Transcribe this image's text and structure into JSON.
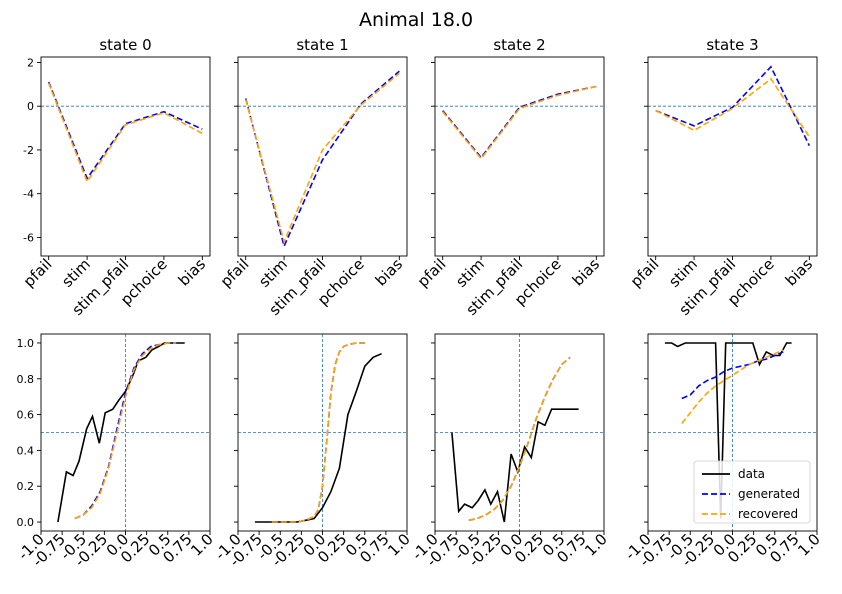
{
  "figure": {
    "title": "Animal 18.0"
  },
  "colors": {
    "generated": "#0000ff",
    "recovered": "#ffa500",
    "data": "#000000",
    "refline": "#1f77b4"
  },
  "chart_data": [
    {
      "type": "line",
      "panel": "weights",
      "title": "state 0",
      "categories": [
        "pfail",
        "stim",
        "stim_pfail",
        "pchoice",
        "bias"
      ],
      "ylim": [
        -6.85,
        2.25
      ],
      "yticks": [
        "-6",
        "-4",
        "-2",
        "0",
        "2"
      ],
      "show_yticklabels": true,
      "hline": 0,
      "series": [
        {
          "key": "generated",
          "values": [
            1.1,
            -3.3,
            -0.8,
            -0.25,
            -1.05
          ]
        },
        {
          "key": "recovered",
          "values": [
            1.05,
            -3.45,
            -0.85,
            -0.3,
            -1.25
          ]
        }
      ]
    },
    {
      "type": "line",
      "panel": "weights",
      "title": "state 1",
      "categories": [
        "pfail",
        "stim",
        "stim_pfail",
        "pchoice",
        "bias"
      ],
      "ylim": [
        -6.85,
        2.25
      ],
      "yticks": [
        "-6",
        "-4",
        "-2",
        "0",
        "2"
      ],
      "show_yticklabels": false,
      "hline": 0,
      "series": [
        {
          "key": "generated",
          "values": [
            0.35,
            -6.4,
            -2.45,
            0.1,
            1.6
          ]
        },
        {
          "key": "recovered",
          "values": [
            0.3,
            -6.2,
            -2.0,
            0.05,
            1.5
          ]
        }
      ]
    },
    {
      "type": "line",
      "panel": "weights",
      "title": "state 2",
      "categories": [
        "pfail",
        "stim",
        "stim_pfail",
        "pchoice",
        "bias"
      ],
      "ylim": [
        -6.85,
        2.25
      ],
      "yticks": [
        "-6",
        "-4",
        "-2",
        "0",
        "2"
      ],
      "show_yticklabels": false,
      "hline": 0,
      "series": [
        {
          "key": "generated",
          "values": [
            -0.2,
            -2.35,
            -0.05,
            0.55,
            0.9
          ]
        },
        {
          "key": "recovered",
          "values": [
            -0.25,
            -2.4,
            -0.1,
            0.5,
            0.9
          ]
        }
      ]
    },
    {
      "type": "line",
      "panel": "weights",
      "title": "state 3",
      "categories": [
        "pfail",
        "stim",
        "stim_pfail",
        "pchoice",
        "bias"
      ],
      "ylim": [
        -6.85,
        2.25
      ],
      "yticks": [
        "-6",
        "-4",
        "-2",
        "0",
        "2"
      ],
      "show_yticklabels": false,
      "hline": 0,
      "series": [
        {
          "key": "generated",
          "values": [
            -0.2,
            -0.9,
            -0.05,
            1.8,
            -1.8
          ]
        },
        {
          "key": "recovered",
          "values": [
            -0.2,
            -1.1,
            -0.1,
            1.25,
            -1.4
          ]
        }
      ]
    },
    {
      "type": "line",
      "panel": "psychometric",
      "xlim": [
        -1.0,
        1.0
      ],
      "ylim": [
        -0.05,
        1.05
      ],
      "xticks": [
        "-1.0",
        "-0.75",
        "-0.5",
        "-0.25",
        "0.0",
        "0.25",
        "0.5",
        "0.75",
        "1.0"
      ],
      "yticks": [
        "0.0",
        "0.2",
        "0.4",
        "0.6",
        "0.8",
        "1.0"
      ],
      "show_yticklabels": true,
      "hline": 0.5,
      "vline": 0,
      "series": [
        {
          "name": "data",
          "key": "data",
          "x": [
            -0.8,
            -0.7,
            -0.62,
            -0.55,
            -0.46,
            -0.39,
            -0.31,
            -0.24,
            -0.15,
            -0.08,
            0.0,
            0.08,
            0.15,
            0.24,
            0.31,
            0.39,
            0.46,
            0.55,
            0.62,
            0.7
          ],
          "y": [
            0.0,
            0.28,
            0.26,
            0.34,
            0.52,
            0.59,
            0.44,
            0.61,
            0.63,
            0.68,
            0.73,
            0.81,
            0.9,
            0.92,
            0.96,
            0.98,
            1.0,
            1.0,
            1.0,
            1.0
          ]
        },
        {
          "name": "generated",
          "key": "generated",
          "x": [
            -0.6,
            -0.5,
            -0.4,
            -0.3,
            -0.2,
            -0.1,
            0.0,
            0.1,
            0.2,
            0.3,
            0.4,
            0.5,
            0.6
          ],
          "y": [
            0.02,
            0.04,
            0.09,
            0.17,
            0.31,
            0.52,
            0.72,
            0.86,
            0.94,
            0.98,
            0.99,
            1.0,
            1.0
          ]
        },
        {
          "name": "recovered",
          "key": "recovered",
          "x": [
            -0.6,
            -0.5,
            -0.4,
            -0.3,
            -0.2,
            -0.1,
            0.0,
            0.1,
            0.2,
            0.3,
            0.4,
            0.5,
            0.6
          ],
          "y": [
            0.02,
            0.04,
            0.08,
            0.16,
            0.3,
            0.5,
            0.7,
            0.85,
            0.93,
            0.97,
            0.99,
            1.0,
            1.0
          ]
        }
      ]
    },
    {
      "type": "line",
      "panel": "psychometric",
      "xlim": [
        -1.0,
        1.0
      ],
      "ylim": [
        -0.05,
        1.05
      ],
      "xticks": [
        "-1.0",
        "-0.75",
        "-0.5",
        "-0.25",
        "0.0",
        "0.25",
        "0.5",
        "0.75",
        "1.0"
      ],
      "yticks": [
        "0.0",
        "0.2",
        "0.4",
        "0.6",
        "0.8",
        "1.0"
      ],
      "show_yticklabels": false,
      "hline": 0.5,
      "vline": 0,
      "series": [
        {
          "name": "data",
          "key": "data",
          "x": [
            -0.8,
            -0.7,
            -0.6,
            -0.5,
            -0.4,
            -0.3,
            -0.2,
            -0.1,
            0.0,
            0.1,
            0.2,
            0.3,
            0.4,
            0.5,
            0.6,
            0.7
          ],
          "y": [
            0.0,
            0.0,
            0.0,
            0.0,
            0.0,
            0.0,
            0.01,
            0.02,
            0.08,
            0.17,
            0.3,
            0.6,
            0.73,
            0.87,
            0.92,
            0.94
          ]
        },
        {
          "name": "generated",
          "key": "generated",
          "x": [
            -0.6,
            -0.5,
            -0.4,
            -0.3,
            -0.2,
            -0.1,
            -0.05,
            0.0,
            0.05,
            0.1,
            0.15,
            0.2,
            0.25,
            0.3,
            0.4,
            0.5
          ],
          "y": [
            0.0,
            0.0,
            0.0,
            0.0,
            0.01,
            0.03,
            0.07,
            0.2,
            0.45,
            0.72,
            0.88,
            0.95,
            0.98,
            0.99,
            1.0,
            1.0
          ]
        },
        {
          "name": "recovered",
          "key": "recovered",
          "x": [
            -0.6,
            -0.5,
            -0.4,
            -0.3,
            -0.2,
            -0.1,
            -0.05,
            0.0,
            0.05,
            0.1,
            0.15,
            0.2,
            0.25,
            0.3,
            0.4,
            0.5
          ],
          "y": [
            0.0,
            0.0,
            0.0,
            0.0,
            0.01,
            0.03,
            0.07,
            0.2,
            0.45,
            0.72,
            0.88,
            0.95,
            0.98,
            0.99,
            1.0,
            1.0
          ]
        }
      ]
    },
    {
      "type": "line",
      "panel": "psychometric",
      "xlim": [
        -1.0,
        1.0
      ],
      "ylim": [
        -0.05,
        1.05
      ],
      "xticks": [
        "-1.0",
        "-0.75",
        "-0.5",
        "-0.25",
        "0.0",
        "0.25",
        "0.5",
        "0.75",
        "1.0"
      ],
      "yticks": [
        "0.0",
        "0.2",
        "0.4",
        "0.6",
        "0.8",
        "1.0"
      ],
      "show_yticklabels": false,
      "hline": 0.5,
      "vline": 0,
      "series": [
        {
          "name": "data",
          "key": "data",
          "x": [
            -0.8,
            -0.72,
            -0.65,
            -0.56,
            -0.49,
            -0.41,
            -0.34,
            -0.26,
            -0.18,
            -0.1,
            -0.02,
            0.06,
            0.14,
            0.22,
            0.3,
            0.38,
            0.45,
            0.54,
            0.62,
            0.7
          ],
          "y": [
            0.5,
            0.06,
            0.1,
            0.08,
            0.12,
            0.18,
            0.1,
            0.17,
            0.0,
            0.38,
            0.28,
            0.42,
            0.36,
            0.56,
            0.54,
            0.63,
            0.63,
            0.63,
            0.63,
            0.63
          ]
        },
        {
          "name": "generated",
          "key": "generated",
          "x": [
            -0.6,
            -0.5,
            -0.4,
            -0.3,
            -0.2,
            -0.1,
            0.0,
            0.1,
            0.2,
            0.3,
            0.4,
            0.5,
            0.6
          ],
          "y": [
            0.01,
            0.02,
            0.04,
            0.07,
            0.12,
            0.2,
            0.31,
            0.44,
            0.58,
            0.7,
            0.8,
            0.88,
            0.92
          ]
        },
        {
          "name": "recovered",
          "key": "recovered",
          "x": [
            -0.6,
            -0.5,
            -0.4,
            -0.3,
            -0.2,
            -0.1,
            0.0,
            0.1,
            0.2,
            0.3,
            0.4,
            0.5,
            0.6
          ],
          "y": [
            0.01,
            0.02,
            0.04,
            0.07,
            0.12,
            0.2,
            0.31,
            0.44,
            0.58,
            0.7,
            0.8,
            0.88,
            0.92
          ]
        }
      ]
    },
    {
      "type": "line",
      "panel": "psychometric",
      "xlim": [
        -1.0,
        1.0
      ],
      "ylim": [
        -0.05,
        1.05
      ],
      "xticks": [
        "-1.0",
        "-0.75",
        "-0.5",
        "-0.25",
        "0.0",
        "0.25",
        "0.5",
        "0.75",
        "1.0"
      ],
      "yticks": [
        "0.0",
        "0.2",
        "0.4",
        "0.6",
        "0.8",
        "1.0"
      ],
      "show_yticklabels": false,
      "hline": 0.5,
      "vline": 0,
      "legend": {
        "entries": [
          "data",
          "generated",
          "recovered"
        ],
        "placement": "lower-right"
      },
      "series": [
        {
          "name": "data",
          "key": "data",
          "x": [
            -0.8,
            -0.72,
            -0.65,
            -0.56,
            -0.49,
            -0.41,
            -0.34,
            -0.26,
            -0.2,
            -0.14,
            -0.08,
            0.0,
            0.08,
            0.16,
            0.24,
            0.32,
            0.4,
            0.48,
            0.56,
            0.64,
            0.7
          ],
          "y": [
            1.0,
            1.0,
            0.98,
            1.0,
            1.0,
            1.0,
            1.0,
            1.0,
            1.0,
            0.02,
            1.0,
            1.0,
            1.0,
            1.0,
            1.0,
            0.88,
            0.95,
            0.93,
            0.93,
            1.0,
            1.0
          ]
        },
        {
          "name": "generated",
          "key": "generated",
          "x": [
            -0.6,
            -0.5,
            -0.4,
            -0.3,
            -0.2,
            -0.1,
            0.0,
            0.1,
            0.2,
            0.3,
            0.4,
            0.5,
            0.6
          ],
          "y": [
            0.69,
            0.71,
            0.76,
            0.79,
            0.81,
            0.84,
            0.86,
            0.87,
            0.88,
            0.9,
            0.91,
            0.93,
            0.95
          ]
        },
        {
          "name": "recovered",
          "key": "recovered",
          "x": [
            -0.6,
            -0.5,
            -0.4,
            -0.3,
            -0.2,
            -0.1,
            0.0,
            0.1,
            0.2,
            0.3,
            0.4,
            0.5,
            0.6
          ],
          "y": [
            0.55,
            0.61,
            0.67,
            0.72,
            0.76,
            0.79,
            0.82,
            0.85,
            0.88,
            0.9,
            0.92,
            0.94,
            0.96
          ]
        }
      ]
    }
  ]
}
